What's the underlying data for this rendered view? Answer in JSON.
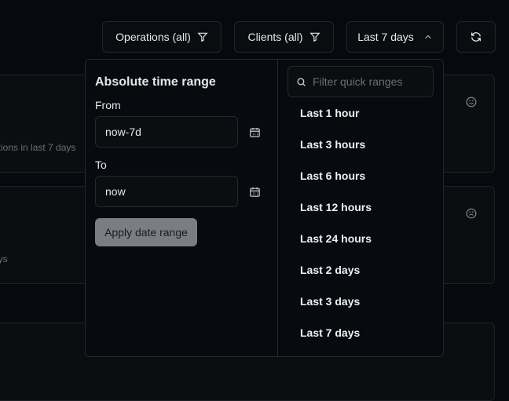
{
  "toolbar": {
    "operations": "Operations (all)",
    "clients": "Clients (all)",
    "range": "Last 7 days"
  },
  "cards": [
    {
      "subtitle": "ations in last 7 days",
      "icon": "smile-icon"
    },
    {
      "subtitle": "ays",
      "icon": "frown-icon"
    }
  ],
  "absolute": {
    "title": "Absolute time range",
    "from_label": "From",
    "from_value": "now-7d",
    "to_label": "To",
    "to_value": "now",
    "apply": "Apply date range"
  },
  "quick": {
    "placeholder": "Filter quick ranges",
    "items": [
      "Last 1 hour",
      "Last 3 hours",
      "Last 6 hours",
      "Last 12 hours",
      "Last 24 hours",
      "Last 2 days",
      "Last 3 days",
      "Last 7 days"
    ]
  }
}
